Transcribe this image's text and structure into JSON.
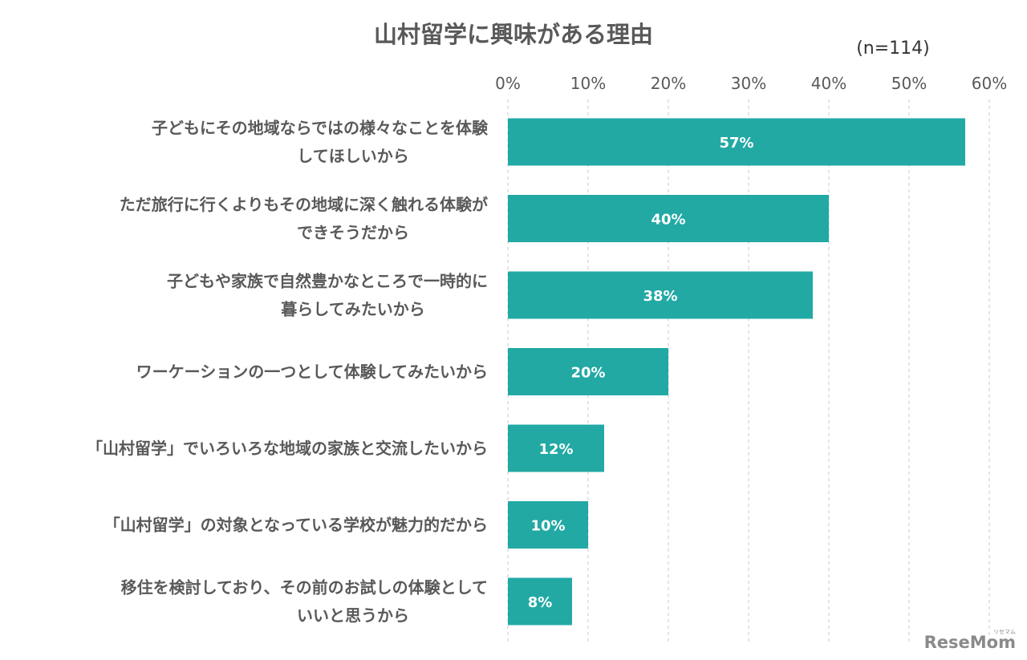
{
  "chart_data": {
    "type": "bar",
    "orientation": "horizontal",
    "title": "山村留学に興味がある理由",
    "note": "(n=114)",
    "xlim": [
      0,
      60
    ],
    "xticks": [
      "0%",
      "10%",
      "20%",
      "30%",
      "40%",
      "50%",
      "60%"
    ],
    "grid": true,
    "categories": [
      [
        "子どもにその地域ならではの様々なことを体験",
        "してほしいから"
      ],
      [
        "ただ旅行に行くよりもその地域に深く触れる体験が",
        "できそうだから"
      ],
      [
        "子どもや家族で自然豊かなところで一時的に",
        "暮らしてみたいから"
      ],
      [
        "ワーケーションの一つとして体験してみたいから"
      ],
      [
        "「山村留学」でいろいろな地域の家族と交流したいから"
      ],
      [
        "「山村留学」の対象となっている学校が魅力的だから"
      ],
      [
        "移住を検討しており、その前のお試しの体験として",
        "いいと思うから"
      ]
    ],
    "values": [
      57,
      40,
      38,
      20,
      12,
      10,
      8
    ],
    "value_labels": [
      "57%",
      "40%",
      "38%",
      "20%",
      "12%",
      "10%",
      "8%"
    ],
    "bar_color": "#22a9a4"
  },
  "brand": {
    "logo_text": "ReseMom",
    "logo_sub": "リセマム"
  }
}
